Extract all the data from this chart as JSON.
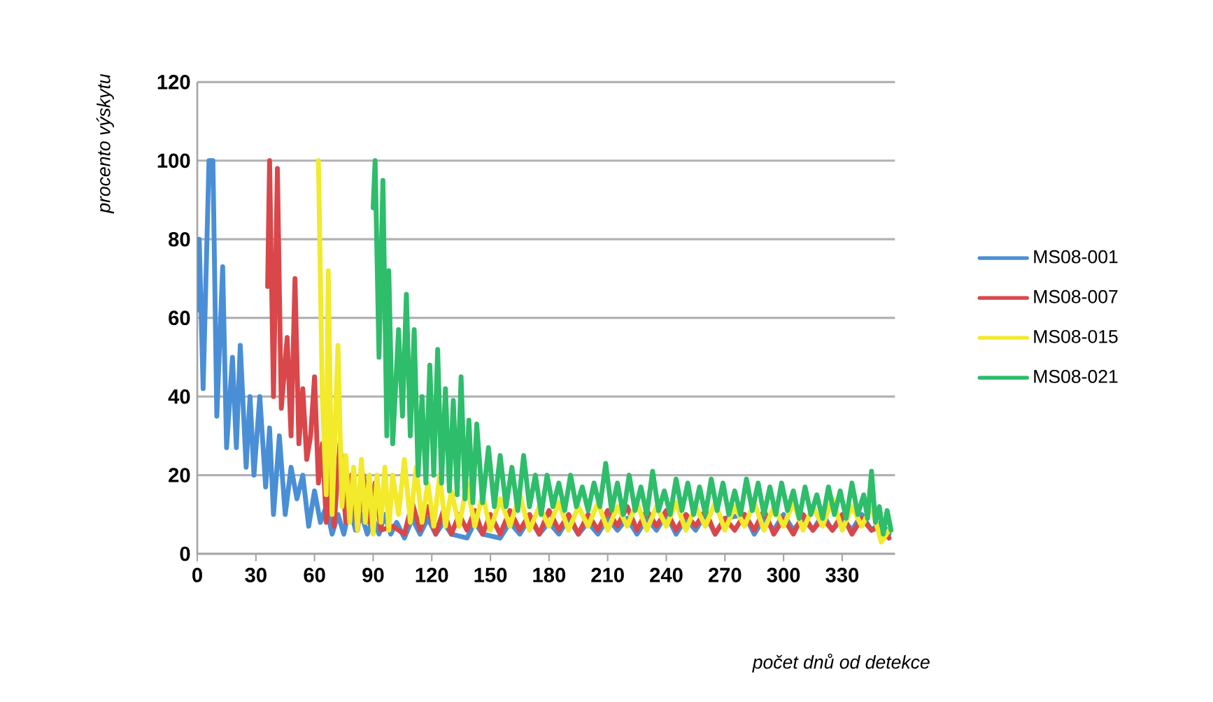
{
  "chart_data": {
    "type": "line",
    "xlabel": "počet dnů od detekce",
    "ylabel": "procento výskytu",
    "xlim": [
      0,
      357
    ],
    "ylim": [
      0,
      120
    ],
    "xticks": [
      0,
      30,
      60,
      90,
      120,
      150,
      180,
      210,
      240,
      270,
      300,
      330
    ],
    "yticks": [
      0,
      20,
      40,
      60,
      80,
      100,
      120
    ],
    "grid": "y",
    "legend": "right",
    "line_style": "solid",
    "series": [
      {
        "name": "MS08-001",
        "color": "#4a8fd6",
        "x": [
          0,
          1,
          3,
          6,
          8,
          10,
          13,
          15,
          18,
          20,
          22,
          25,
          27,
          29,
          32,
          35,
          37,
          39,
          42,
          45,
          48,
          51,
          54,
          57,
          60,
          63,
          66,
          69,
          72,
          75,
          78,
          81,
          84,
          87,
          90,
          93,
          96,
          99,
          102,
          106,
          110,
          114,
          118,
          122,
          126,
          130,
          134,
          138,
          142,
          146,
          150,
          155,
          160,
          165,
          170,
          175,
          180,
          185,
          190,
          195,
          200,
          205,
          210,
          215,
          220,
          225,
          230,
          235,
          240,
          245,
          250,
          255,
          260,
          265,
          270,
          275,
          280,
          285,
          290,
          295,
          300,
          305,
          310,
          315,
          320,
          325,
          330,
          335,
          340,
          345,
          350,
          354
        ],
        "values": [
          62,
          80,
          42,
          100,
          100,
          35,
          73,
          27,
          50,
          27,
          53,
          22,
          40,
          20,
          40,
          17,
          32,
          10,
          30,
          10,
          22,
          14,
          20,
          7,
          16,
          8,
          12,
          5,
          10,
          5,
          12,
          6,
          10,
          5,
          9,
          5,
          10,
          5,
          8,
          4,
          9,
          5,
          9,
          5,
          8,
          5,
          null,
          4,
          8,
          5,
          null,
          4,
          8,
          5,
          9,
          5,
          8,
          5,
          9,
          5,
          8,
          5,
          9,
          6,
          9,
          5,
          9,
          6,
          10,
          5,
          9,
          6,
          10,
          5,
          9,
          null,
          10,
          5,
          9,
          6,
          10,
          6,
          9,
          6,
          10,
          6,
          9,
          6,
          10,
          6,
          8,
          5
        ]
      },
      {
        "name": "MS08-007",
        "color": "#d9474b",
        "x": [
          36,
          37,
          39,
          41,
          43,
          46,
          48,
          50,
          52,
          54,
          56,
          58,
          60,
          62,
          64,
          66,
          68,
          70,
          73,
          76,
          79,
          82,
          85,
          88,
          91,
          94,
          97,
          100,
          103,
          106,
          110,
          114,
          118,
          122,
          126,
          130,
          134,
          138,
          142,
          146,
          150,
          155,
          160,
          165,
          170,
          175,
          180,
          185,
          190,
          195,
          200,
          205,
          210,
          215,
          220,
          225,
          230,
          235,
          240,
          245,
          250,
          255,
          260,
          265,
          270,
          275,
          280,
          285,
          290,
          295,
          300,
          305,
          310,
          315,
          320,
          325,
          330,
          335,
          340,
          345,
          350,
          354
        ],
        "values": [
          68,
          100,
          40,
          98,
          37,
          55,
          30,
          70,
          28,
          42,
          24,
          30,
          45,
          18,
          28,
          8,
          22,
          7,
          28,
          8,
          20,
          6,
          20,
          8,
          18,
          6,
          null,
          7,
          null,
          5,
          13,
          6,
          12,
          5,
          11,
          5,
          10,
          6,
          11,
          5,
          10,
          5,
          11,
          6,
          10,
          5,
          11,
          6,
          10,
          5,
          10,
          6,
          11,
          7,
          12,
          6,
          11,
          7,
          11,
          6,
          10,
          7,
          11,
          5,
          9,
          6,
          10,
          6,
          11,
          5,
          9,
          5,
          10,
          6,
          9,
          6,
          10,
          5,
          9,
          6,
          7,
          4
        ]
      },
      {
        "name": "MS08-015",
        "color": "#f2ea2a",
        "x": [
          62,
          64,
          66,
          67,
          69,
          72,
          74,
          76,
          78,
          80,
          82,
          84,
          86,
          88,
          90,
          92,
          94,
          96,
          98,
          100,
          103,
          106,
          109,
          112,
          115,
          118,
          121,
          124,
          127,
          130,
          134,
          138,
          142,
          146,
          150,
          155,
          160,
          165,
          170,
          175,
          180,
          185,
          190,
          195,
          200,
          205,
          210,
          215,
          220,
          225,
          230,
          235,
          240,
          245,
          250,
          255,
          260,
          265,
          270,
          275,
          280,
          285,
          290,
          295,
          300,
          305,
          310,
          315,
          320,
          325,
          330,
          335,
          340,
          345,
          350,
          354
        ],
        "values": [
          100,
          40,
          15,
          72,
          10,
          53,
          12,
          25,
          8,
          22,
          6,
          24,
          8,
          20,
          5,
          20,
          8,
          22,
          6,
          20,
          10,
          24,
          8,
          22,
          8,
          18,
          7,
          20,
          7,
          16,
          7,
          18,
          7,
          15,
          6,
          14,
          7,
          15,
          6,
          12,
          7,
          13,
          6,
          12,
          7,
          13,
          6,
          12,
          7,
          13,
          6,
          12,
          7,
          13,
          6,
          12,
          7,
          13,
          6,
          12,
          7,
          13,
          6,
          12,
          7,
          13,
          6,
          12,
          7,
          14,
          6,
          12,
          7,
          12,
          3,
          6
        ]
      },
      {
        "name": "MS08-021",
        "color": "#2ebd6b",
        "x": [
          90,
          91,
          93,
          95,
          97,
          98,
          100,
          103,
          105,
          107,
          109,
          111,
          113,
          115,
          117,
          119,
          121,
          123,
          125,
          127,
          129,
          131,
          133,
          135,
          137,
          139,
          141,
          143,
          146,
          149,
          152,
          155,
          158,
          161,
          164,
          167,
          170,
          173,
          176,
          179,
          182,
          185,
          188,
          191,
          194,
          197,
          200,
          203,
          206,
          209,
          212,
          215,
          218,
          221,
          224,
          227,
          230,
          233,
          236,
          239,
          242,
          245,
          248,
          251,
          254,
          257,
          260,
          263,
          266,
          269,
          272,
          275,
          278,
          281,
          284,
          287,
          290,
          293,
          296,
          299,
          302,
          305,
          308,
          311,
          314,
          317,
          320,
          323,
          326,
          329,
          332,
          335,
          338,
          341,
          343,
          345,
          347,
          349,
          351,
          353,
          355
        ],
        "values": [
          88,
          100,
          50,
          95,
          30,
          72,
          28,
          57,
          35,
          66,
          30,
          57,
          20,
          40,
          18,
          48,
          20,
          52,
          18,
          42,
          16,
          39,
          15,
          45,
          14,
          34,
          13,
          33,
          13,
          27,
          12,
          25,
          12,
          22,
          11,
          25,
          12,
          20,
          10,
          20,
          12,
          18,
          11,
          20,
          12,
          17,
          11,
          18,
          12,
          23,
          11,
          18,
          10,
          20,
          11,
          17,
          10,
          21,
          11,
          16,
          10,
          19,
          11,
          18,
          10,
          17,
          10,
          19,
          11,
          18,
          10,
          16,
          10,
          19,
          11,
          18,
          10,
          17,
          10,
          18,
          11,
          16,
          9,
          17,
          10,
          15,
          9,
          17,
          10,
          16,
          9,
          18,
          10,
          15,
          9,
          21,
          8,
          12,
          5,
          11,
          6
        ]
      }
    ]
  }
}
